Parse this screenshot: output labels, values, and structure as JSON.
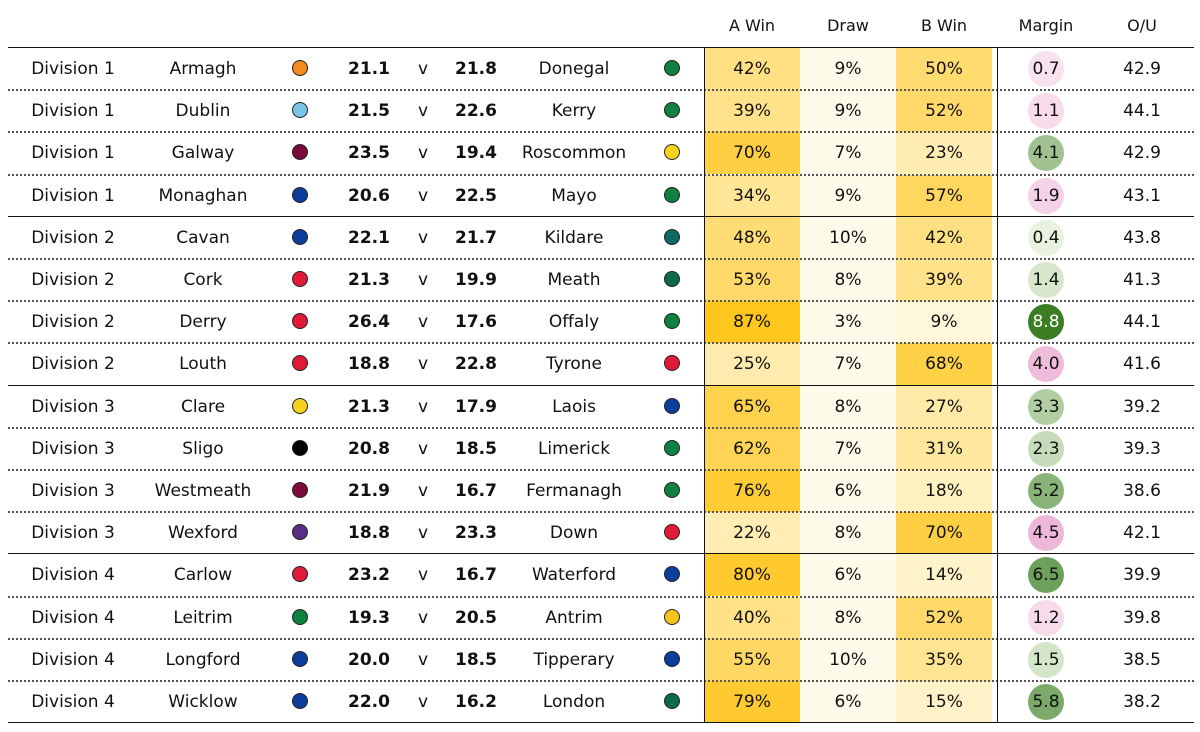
{
  "chart_data": {
    "type": "table",
    "columns": [
      "",
      "",
      "",
      "",
      "",
      "",
      "",
      "",
      "A Win",
      "Draw",
      "B Win",
      "Margin",
      "O/U"
    ],
    "colors": {
      "win_scale": [
        "#fffbea",
        "#ffc61e"
      ],
      "margin_pos": "#3a7d22",
      "margin_neg": "#e290c5"
    },
    "rows": [
      {
        "division": "Division 1",
        "team_a": "Armagh",
        "color_a": "#f58a1f",
        "score_a": "21.1",
        "vs": "v",
        "score_b": "21.8",
        "team_b": "Donegal",
        "color_b": "#108040",
        "a_win": "42%",
        "draw": "9%",
        "b_win": "50%",
        "margin": "0.7",
        "ou": "42.9",
        "a_val": 42,
        "b_val": 50,
        "margin_val": -0.7
      },
      {
        "division": "Division 1",
        "team_a": "Dublin",
        "color_a": "#7cc3e8",
        "score_a": "21.5",
        "vs": "v",
        "score_b": "22.6",
        "team_b": "Kerry",
        "color_b": "#108040",
        "a_win": "39%",
        "draw": "9%",
        "b_win": "52%",
        "margin": "1.1",
        "ou": "44.1",
        "a_val": 39,
        "b_val": 52,
        "margin_val": -1.1
      },
      {
        "division": "Division 1",
        "team_a": "Galway",
        "color_a": "#7a0b3a",
        "score_a": "23.5",
        "vs": "v",
        "score_b": "19.4",
        "team_b": "Roscommon",
        "color_b": "#f7d11d",
        "a_win": "70%",
        "draw": "7%",
        "b_win": "23%",
        "margin": "4.1",
        "ou": "42.9",
        "a_val": 70,
        "b_val": 23,
        "margin_val": 4.1
      },
      {
        "division": "Division 1",
        "team_a": "Monaghan",
        "color_a": "#0a3d9c",
        "score_a": "20.6",
        "vs": "v",
        "score_b": "22.5",
        "team_b": "Mayo",
        "color_b": "#108040",
        "a_win": "34%",
        "draw": "9%",
        "b_win": "57%",
        "margin": "1.9",
        "ou": "43.1",
        "a_val": 34,
        "b_val": 57,
        "margin_val": -1.9
      },
      {
        "division": "Division 2",
        "team_a": "Cavan",
        "color_a": "#0a3d9c",
        "score_a": "22.1",
        "vs": "v",
        "score_b": "21.7",
        "team_b": "Kildare",
        "color_b": "#0d6b63",
        "a_win": "48%",
        "draw": "10%",
        "b_win": "42%",
        "margin": "0.4",
        "ou": "43.8",
        "a_val": 48,
        "b_val": 42,
        "margin_val": 0.4
      },
      {
        "division": "Division 2",
        "team_a": "Cork",
        "color_a": "#e01b3a",
        "score_a": "21.3",
        "vs": "v",
        "score_b": "19.9",
        "team_b": "Meath",
        "color_b": "#0d6b4a",
        "a_win": "53%",
        "draw": "8%",
        "b_win": "39%",
        "margin": "1.4",
        "ou": "41.3",
        "a_val": 53,
        "b_val": 39,
        "margin_val": 1.4
      },
      {
        "division": "Division 2",
        "team_a": "Derry",
        "color_a": "#e01b3a",
        "score_a": "26.4",
        "vs": "v",
        "score_b": "17.6",
        "team_b": "Offaly",
        "color_b": "#108040",
        "a_win": "87%",
        "draw": "3%",
        "b_win": "9%",
        "margin": "8.8",
        "ou": "44.1",
        "a_val": 87,
        "b_val": 9,
        "margin_val": 8.8
      },
      {
        "division": "Division 2",
        "team_a": "Louth",
        "color_a": "#e01b3a",
        "score_a": "18.8",
        "vs": "v",
        "score_b": "22.8",
        "team_b": "Tyrone",
        "color_b": "#e01b3a",
        "a_win": "25%",
        "draw": "7%",
        "b_win": "68%",
        "margin": "4.0",
        "ou": "41.6",
        "a_val": 25,
        "b_val": 68,
        "margin_val": -4.0
      },
      {
        "division": "Division 3",
        "team_a": "Clare",
        "color_a": "#f7d11d",
        "score_a": "21.3",
        "vs": "v",
        "score_b": "17.9",
        "team_b": "Laois",
        "color_b": "#0a3d9c",
        "a_win": "65%",
        "draw": "8%",
        "b_win": "27%",
        "margin": "3.3",
        "ou": "39.2",
        "a_val": 65,
        "b_val": 27,
        "margin_val": 3.3
      },
      {
        "division": "Division 3",
        "team_a": "Sligo",
        "color_a": "#000000",
        "score_a": "20.8",
        "vs": "v",
        "score_b": "18.5",
        "team_b": "Limerick",
        "color_b": "#108040",
        "a_win": "62%",
        "draw": "7%",
        "b_win": "31%",
        "margin": "2.3",
        "ou": "39.3",
        "a_val": 62,
        "b_val": 31,
        "margin_val": 2.3
      },
      {
        "division": "Division 3",
        "team_a": "Westmeath",
        "color_a": "#7a0b3a",
        "score_a": "21.9",
        "vs": "v",
        "score_b": "16.7",
        "team_b": "Fermanagh",
        "color_b": "#108040",
        "a_win": "76%",
        "draw": "6%",
        "b_win": "18%",
        "margin": "5.2",
        "ou": "38.6",
        "a_val": 76,
        "b_val": 18,
        "margin_val": 5.2
      },
      {
        "division": "Division 3",
        "team_a": "Wexford",
        "color_a": "#5b2d86",
        "score_a": "18.8",
        "vs": "v",
        "score_b": "23.3",
        "team_b": "Down",
        "color_b": "#e01b3a",
        "a_win": "22%",
        "draw": "8%",
        "b_win": "70%",
        "margin": "4.5",
        "ou": "42.1",
        "a_val": 22,
        "b_val": 70,
        "margin_val": -4.5
      },
      {
        "division": "Division 4",
        "team_a": "Carlow",
        "color_a": "#e01b3a",
        "score_a": "23.2",
        "vs": "v",
        "score_b": "16.7",
        "team_b": "Waterford",
        "color_b": "#0a3d9c",
        "a_win": "80%",
        "draw": "6%",
        "b_win": "14%",
        "margin": "6.5",
        "ou": "39.9",
        "a_val": 80,
        "b_val": 14,
        "margin_val": 6.5
      },
      {
        "division": "Division 4",
        "team_a": "Leitrim",
        "color_a": "#108040",
        "score_a": "19.3",
        "vs": "v",
        "score_b": "20.5",
        "team_b": "Antrim",
        "color_b": "#f7c21d",
        "a_win": "40%",
        "draw": "8%",
        "b_win": "52%",
        "margin": "1.2",
        "ou": "39.8",
        "a_val": 40,
        "b_val": 52,
        "margin_val": -1.2
      },
      {
        "division": "Division 4",
        "team_a": "Longford",
        "color_a": "#0a3d9c",
        "score_a": "20.0",
        "vs": "v",
        "score_b": "18.5",
        "team_b": "Tipperary",
        "color_b": "#0a3d9c",
        "a_win": "55%",
        "draw": "10%",
        "b_win": "35%",
        "margin": "1.5",
        "ou": "38.5",
        "a_val": 55,
        "b_val": 35,
        "margin_val": 1.5
      },
      {
        "division": "Division 4",
        "team_a": "Wicklow",
        "color_a": "#0a3d9c",
        "score_a": "22.0",
        "vs": "v",
        "score_b": "16.2",
        "team_b": "London",
        "color_b": "#0d6b4a",
        "a_win": "79%",
        "draw": "6%",
        "b_win": "15%",
        "margin": "5.8",
        "ou": "38.2",
        "a_val": 79,
        "b_val": 15,
        "margin_val": 5.8
      }
    ]
  }
}
